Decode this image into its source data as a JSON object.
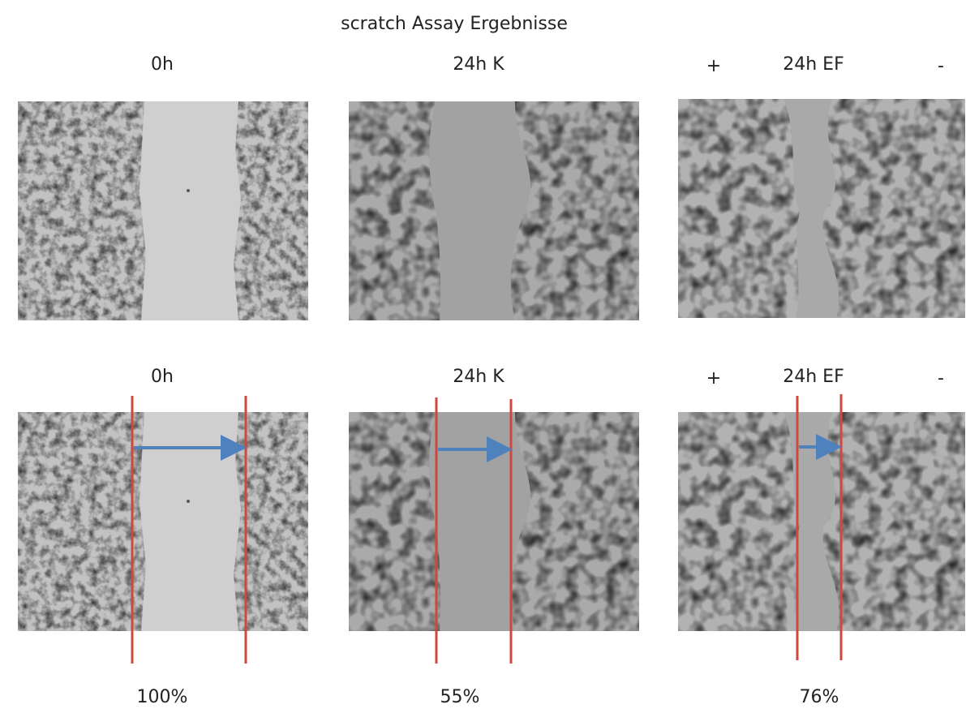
{
  "title": "scratch Assay Ergebnisse",
  "rows": [
    {
      "panels": [
        {
          "label": "0h"
        },
        {
          "label": "24h K"
        },
        {
          "label": "24h EF",
          "left_sign": "+",
          "right_sign": "-"
        }
      ]
    },
    {
      "panels": [
        {
          "label": "0h"
        },
        {
          "label": "24h K"
        },
        {
          "label": "24h EF",
          "left_sign": "+",
          "right_sign": "-"
        }
      ]
    }
  ],
  "results": [
    "100%",
    "55%",
    "76%"
  ]
}
